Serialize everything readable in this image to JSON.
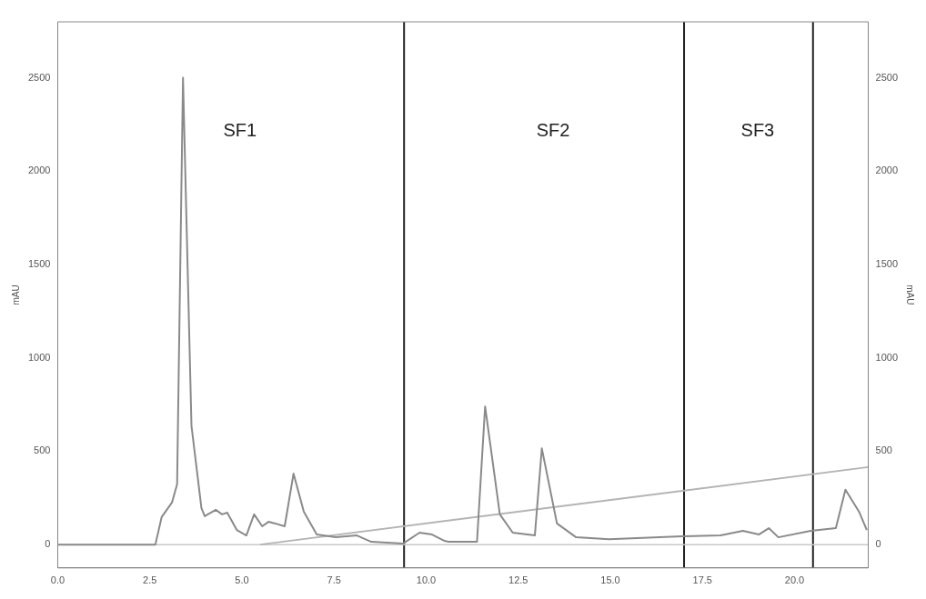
{
  "chart_data": {
    "type": "line",
    "ylabel": "mAU",
    "y2label": "mAU",
    "xlim": [
      0,
      22
    ],
    "xticks": [
      {
        "value": 0,
        "label": "0.0"
      },
      {
        "value": 2.5,
        "label": "2.5"
      },
      {
        "value": 5,
        "label": "5.0"
      },
      {
        "value": 7.5,
        "label": "7.5"
      },
      {
        "value": 10,
        "label": "10.0"
      },
      {
        "value": 12.5,
        "label": "12.5"
      },
      {
        "value": 15,
        "label": "15.0"
      },
      {
        "value": 17.5,
        "label": "17.5"
      },
      {
        "value": 20,
        "label": "20.0"
      }
    ],
    "ylim": [
      -125,
      2800
    ],
    "yticks": [
      0,
      500,
      1000,
      1500,
      2000,
      2500
    ],
    "y2lim": [
      -125,
      2800
    ],
    "y2ticks": [
      0,
      500,
      1000,
      1500,
      2000,
      2500
    ],
    "grid": false,
    "legend": false,
    "marker": "none",
    "line_style": "solid",
    "series": [
      {
        "color": "#8a8a8a",
        "x": [
          0,
          2.65,
          2.82,
          3.1,
          3.24,
          3.4,
          3.63,
          3.9,
          3.99,
          4.29,
          4.46,
          4.6,
          4.86,
          5.12,
          5.33,
          5.55,
          5.72,
          5.9,
          6.16,
          6.4,
          6.68,
          7.03,
          7.55,
          8.12,
          8.51,
          9.37,
          9.82,
          10.16,
          10.5,
          10.6,
          11.38,
          11.6,
          12.0,
          12.35,
          12.95,
          13.14,
          13.55,
          14.07,
          14.96,
          16.95,
          17.99,
          18.6,
          19.03,
          19.3,
          19.56,
          20.44,
          21.12,
          21.38,
          21.75,
          21.96
        ],
        "values": [
          0,
          0,
          147,
          225,
          323,
          2500,
          637,
          196,
          152,
          186,
          162,
          171,
          78,
          49,
          162,
          98,
          122,
          113,
          98,
          380,
          176,
          54,
          39,
          49,
          15,
          5,
          64,
          54,
          20,
          15,
          15,
          740,
          162,
          64,
          49,
          515,
          113,
          39,
          29,
          44,
          49,
          74,
          54,
          88,
          39,
          74,
          88,
          294,
          176,
          78
        ]
      },
      {
        "color": "#b4b4b4",
        "x": [
          5.5,
          22
        ],
        "values": [
          0,
          415
        ]
      }
    ],
    "ref_lines": [
      {
        "axis": "x",
        "value": 9.4,
        "color": "#222222"
      },
      {
        "axis": "x",
        "value": 17,
        "color": "#222222"
      },
      {
        "axis": "x",
        "value": 20.5,
        "color": "#222222"
      },
      {
        "axis": "y",
        "value": 0,
        "color": "#c8c8c8"
      }
    ],
    "annotations": [
      "SF1",
      "SF2",
      "SF3"
    ]
  }
}
